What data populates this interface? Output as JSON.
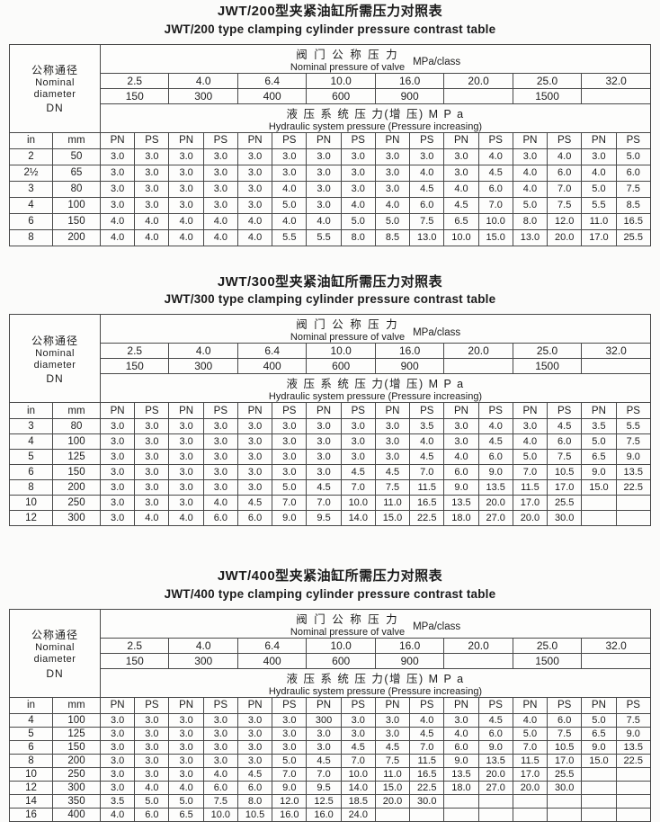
{
  "shared": {
    "left_header": {
      "cn": "公称通径",
      "en_line1": "Nominal",
      "en_line2": "diameter",
      "en_line3": "DN"
    },
    "valve_header": {
      "cn": "阀 门 公 称 压 力",
      "en": "Nominal pressure of valve",
      "unit": "MPa/class"
    },
    "hydraulic_header": {
      "cn": "液 压 系 统 压 力(增 压) M P a",
      "en": "Hydraulic system pressure (Pressure increasing)"
    },
    "pressures": [
      "2.5",
      "4.0",
      "6.4",
      "10.0",
      "16.0",
      "20.0",
      "25.0",
      "32.0"
    ],
    "classes": [
      "150",
      "300",
      "400",
      "600",
      "900",
      "",
      "1500",
      ""
    ],
    "unit_in": "in",
    "unit_mm": "mm",
    "pn_label": "PN",
    "ps_label": "PS"
  },
  "tables": [
    {
      "title_cn": "JWT/200型夹紧油缸所需压力对照表",
      "title_en": "JWT/200 type clamping cylinder pressure contrast table",
      "rows": [
        {
          "in": "2",
          "mm": "50",
          "values": [
            "3.0",
            "3.0",
            "3.0",
            "3.0",
            "3.0",
            "3.0",
            "3.0",
            "3.0",
            "3.0",
            "3.0",
            "3.0",
            "4.0",
            "3.0",
            "4.0",
            "3.0",
            "5.0"
          ]
        },
        {
          "in": "2½",
          "mm": "65",
          "values": [
            "3.0",
            "3.0",
            "3.0",
            "3.0",
            "3.0",
            "3.0",
            "3.0",
            "3.0",
            "3.0",
            "4.0",
            "3.0",
            "4.5",
            "4.0",
            "6.0",
            "4.0",
            "6.0"
          ]
        },
        {
          "in": "3",
          "mm": "80",
          "values": [
            "3.0",
            "3.0",
            "3.0",
            "3.0",
            "3.0",
            "4.0",
            "3.0",
            "3.0",
            "3.0",
            "4.5",
            "4.0",
            "6.0",
            "4.0",
            "7.0",
            "5.0",
            "7.5"
          ]
        },
        {
          "in": "4",
          "mm": "100",
          "values": [
            "3.0",
            "3.0",
            "3.0",
            "3.0",
            "3.0",
            "5.0",
            "3.0",
            "4.0",
            "4.0",
            "6.0",
            "4.5",
            "7.0",
            "5.0",
            "7.5",
            "5.5",
            "8.5"
          ]
        },
        {
          "in": "6",
          "mm": "150",
          "values": [
            "4.0",
            "4.0",
            "4.0",
            "4.0",
            "4.0",
            "4.0",
            "4.0",
            "5.0",
            "5.0",
            "7.5",
            "6.5",
            "10.0",
            "8.0",
            "12.0",
            "11.0",
            "16.5"
          ]
        },
        {
          "in": "8",
          "mm": "200",
          "values": [
            "4.0",
            "4.0",
            "4.0",
            "4.0",
            "4.0",
            "5.5",
            "5.5",
            "8.0",
            "8.5",
            "13.0",
            "10.0",
            "15.0",
            "13.0",
            "20.0",
            "17.0",
            "25.5"
          ]
        }
      ]
    },
    {
      "title_cn": "JWT/300型夹紧油缸所需压力对照表",
      "title_en": "JWT/300 type clamping cylinder pressure contrast table",
      "rows": [
        {
          "in": "3",
          "mm": "80",
          "values": [
            "3.0",
            "3.0",
            "3.0",
            "3.0",
            "3.0",
            "3.0",
            "3.0",
            "3.0",
            "3.0",
            "3.5",
            "3.0",
            "4.0",
            "3.0",
            "4.5",
            "3.5",
            "5.5"
          ]
        },
        {
          "in": "4",
          "mm": "100",
          "values": [
            "3.0",
            "3.0",
            "3.0",
            "3.0",
            "3.0",
            "3.0",
            "3.0",
            "3.0",
            "3.0",
            "4.0",
            "3.0",
            "4.5",
            "4.0",
            "6.0",
            "5.0",
            "7.5"
          ]
        },
        {
          "in": "5",
          "mm": "125",
          "values": [
            "3.0",
            "3.0",
            "3.0",
            "3.0",
            "3.0",
            "3.0",
            "3.0",
            "3.0",
            "3.0",
            "4.5",
            "4.0",
            "6.0",
            "5.0",
            "7.5",
            "6.5",
            "9.0"
          ]
        },
        {
          "in": "6",
          "mm": "150",
          "values": [
            "3.0",
            "3.0",
            "3.0",
            "3.0",
            "3.0",
            "3.0",
            "3.0",
            "4.5",
            "4.5",
            "7.0",
            "6.0",
            "9.0",
            "7.0",
            "10.5",
            "9.0",
            "13.5"
          ]
        },
        {
          "in": "8",
          "mm": "200",
          "values": [
            "3.0",
            "3.0",
            "3.0",
            "3.0",
            "3.0",
            "5.0",
            "4.5",
            "7.0",
            "7.5",
            "11.5",
            "9.0",
            "13.5",
            "11.5",
            "17.0",
            "15.0",
            "22.5"
          ]
        },
        {
          "in": "10",
          "mm": "250",
          "values": [
            "3.0",
            "3.0",
            "3.0",
            "4.0",
            "4.5",
            "7.0",
            "7.0",
            "10.0",
            "11.0",
            "16.5",
            "13.5",
            "20.0",
            "17.0",
            "25.5",
            "",
            ""
          ]
        },
        {
          "in": "12",
          "mm": "300",
          "values": [
            "3.0",
            "4.0",
            "4.0",
            "6.0",
            "6.0",
            "9.0",
            "9.5",
            "14.0",
            "15.0",
            "22.5",
            "18.0",
            "27.0",
            "20.0",
            "30.0",
            "",
            ""
          ]
        }
      ]
    },
    {
      "title_cn": "JWT/400型夹紧油缸所需压力对照表",
      "title_en": "JWT/400 type clamping cylinder pressure contrast table",
      "rows": [
        {
          "in": "4",
          "mm": "100",
          "values": [
            "3.0",
            "3.0",
            "3.0",
            "3.0",
            "3.0",
            "3.0",
            "300",
            "3.0",
            "3.0",
            "4.0",
            "3.0",
            "4.5",
            "4.0",
            "6.0",
            "5.0",
            "7.5"
          ]
        },
        {
          "in": "5",
          "mm": "125",
          "values": [
            "3.0",
            "3.0",
            "3.0",
            "3.0",
            "3.0",
            "3.0",
            "3.0",
            "3.0",
            "3.0",
            "4.5",
            "4.0",
            "6.0",
            "5.0",
            "7.5",
            "6.5",
            "9.0"
          ]
        },
        {
          "in": "6",
          "mm": "150",
          "values": [
            "3.0",
            "3.0",
            "3.0",
            "3.0",
            "3.0",
            "3.0",
            "3.0",
            "4.5",
            "4.5",
            "7.0",
            "6.0",
            "9.0",
            "7.0",
            "10.5",
            "9.0",
            "13.5"
          ]
        },
        {
          "in": "8",
          "mm": "200",
          "values": [
            "3.0",
            "3.0",
            "3.0",
            "3.0",
            "3.0",
            "5.0",
            "4.5",
            "7.0",
            "7.5",
            "11.5",
            "9.0",
            "13.5",
            "11.5",
            "17.0",
            "15.0",
            "22.5"
          ]
        },
        {
          "in": "10",
          "mm": "250",
          "values": [
            "3.0",
            "3.0",
            "3.0",
            "4.0",
            "4.5",
            "7.0",
            "7.0",
            "10.0",
            "11.0",
            "16.5",
            "13.5",
            "20.0",
            "17.0",
            "25.5",
            "",
            ""
          ]
        },
        {
          "in": "12",
          "mm": "300",
          "values": [
            "3.0",
            "4.0",
            "4.0",
            "6.0",
            "6.0",
            "9.0",
            "9.5",
            "14.0",
            "15.0",
            "22.5",
            "18.0",
            "27.0",
            "20.0",
            "30.0",
            "",
            ""
          ]
        },
        {
          "in": "14",
          "mm": "350",
          "values": [
            "3.5",
            "5.0",
            "5.0",
            "7.5",
            "8.0",
            "12.0",
            "12.5",
            "18.5",
            "20.0",
            "30.0",
            "",
            "",
            "",
            "",
            "",
            ""
          ]
        },
        {
          "in": "16",
          "mm": "400",
          "values": [
            "4.0",
            "6.0",
            "6.5",
            "10.0",
            "10.5",
            "16.0",
            "16.0",
            "24.0",
            "",
            "",
            "",
            "",
            "",
            "",
            "",
            ""
          ]
        }
      ]
    }
  ]
}
